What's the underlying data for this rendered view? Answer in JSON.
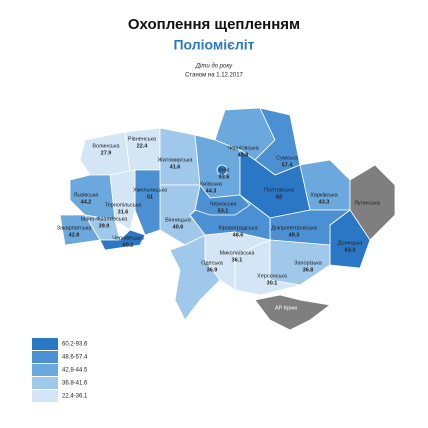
{
  "header": {
    "title": "Охоплення щепленням",
    "subtitle": "Поліомієліт",
    "note": "Діти до року",
    "date": "Станом на 1.12.2017"
  },
  "regions": [
    {
      "name": "Волинська",
      "value": 27.9,
      "color": "#d4e6f5"
    },
    {
      "name": "Рівненська",
      "value": 22.4,
      "color": "#d4e6f5"
    },
    {
      "name": "Житомирська",
      "value": 41.6,
      "color": "#9fc8ea"
    },
    {
      "name": "Чернігівська",
      "value": 43.8,
      "color": "#6aa8dd"
    },
    {
      "name": "Сумська",
      "value": 57.4,
      "color": "#4a90d2"
    },
    {
      "name": "Київська",
      "value": 44.3,
      "color": "#6aa8dd"
    },
    {
      "name": "Полтавська",
      "value": 62,
      "color": "#2a78c5"
    },
    {
      "name": "Харківська",
      "value": 43.3,
      "color": "#6aa8dd"
    },
    {
      "name": "Луганська",
      "color": "#7f7f7f"
    },
    {
      "name": "Донецька",
      "value": 63.3,
      "color": "#2a78c5"
    },
    {
      "name": "Дніпропетровська",
      "value": 49.3,
      "color": "#4a90d2"
    },
    {
      "name": "Запорізька",
      "value": 36.8,
      "color": "#9fc8ea"
    },
    {
      "name": "Херсонська",
      "value": 30.1,
      "color": "#d4e6f5"
    },
    {
      "name": "Кіровоградська",
      "value": 48.6,
      "color": "#4a90d2"
    },
    {
      "name": "Миколаївська",
      "value": 36.1,
      "color": "#d4e6f5"
    },
    {
      "name": "Черкаська",
      "value": 53.1,
      "color": "#4a90d2"
    },
    {
      "name": "Вінницька",
      "value": 40.6,
      "color": "#9fc8ea"
    },
    {
      "name": "Одеська",
      "value": 36.9,
      "color": "#9fc8ea"
    },
    {
      "name": "Хмельницька",
      "value": 51.0,
      "color": "#4a90d2"
    },
    {
      "name": "Тернопільська",
      "value": 31.6,
      "color": "#d4e6f5"
    },
    {
      "name": "Львівська",
      "value": 44.2,
      "color": "#6aa8dd"
    },
    {
      "name": "Закарпатська",
      "value": 42.8,
      "color": "#6aa8dd"
    },
    {
      "name": "Івано-Франківська",
      "value": 39.9,
      "color": "#9fc8ea"
    },
    {
      "name": "Чернівецька",
      "value": 60.2,
      "color": "#2a78c5"
    },
    {
      "name": "АР Крим",
      "color": "#7f7f7f"
    },
    {
      "name": "Київ",
      "value": 93.6,
      "color": "#2a78c5"
    }
  ],
  "legend": [
    {
      "label": "60.2-93.6",
      "color": "#2a78c5"
    },
    {
      "label": "48.6-57.4",
      "color": "#4a90d2"
    },
    {
      "label": "42.8-44.5",
      "color": "#6aa8dd"
    },
    {
      "label": "36.8-41.6",
      "color": "#9fc8ea"
    },
    {
      "label": "22.4-36.1",
      "color": "#d4e6f5"
    }
  ]
}
